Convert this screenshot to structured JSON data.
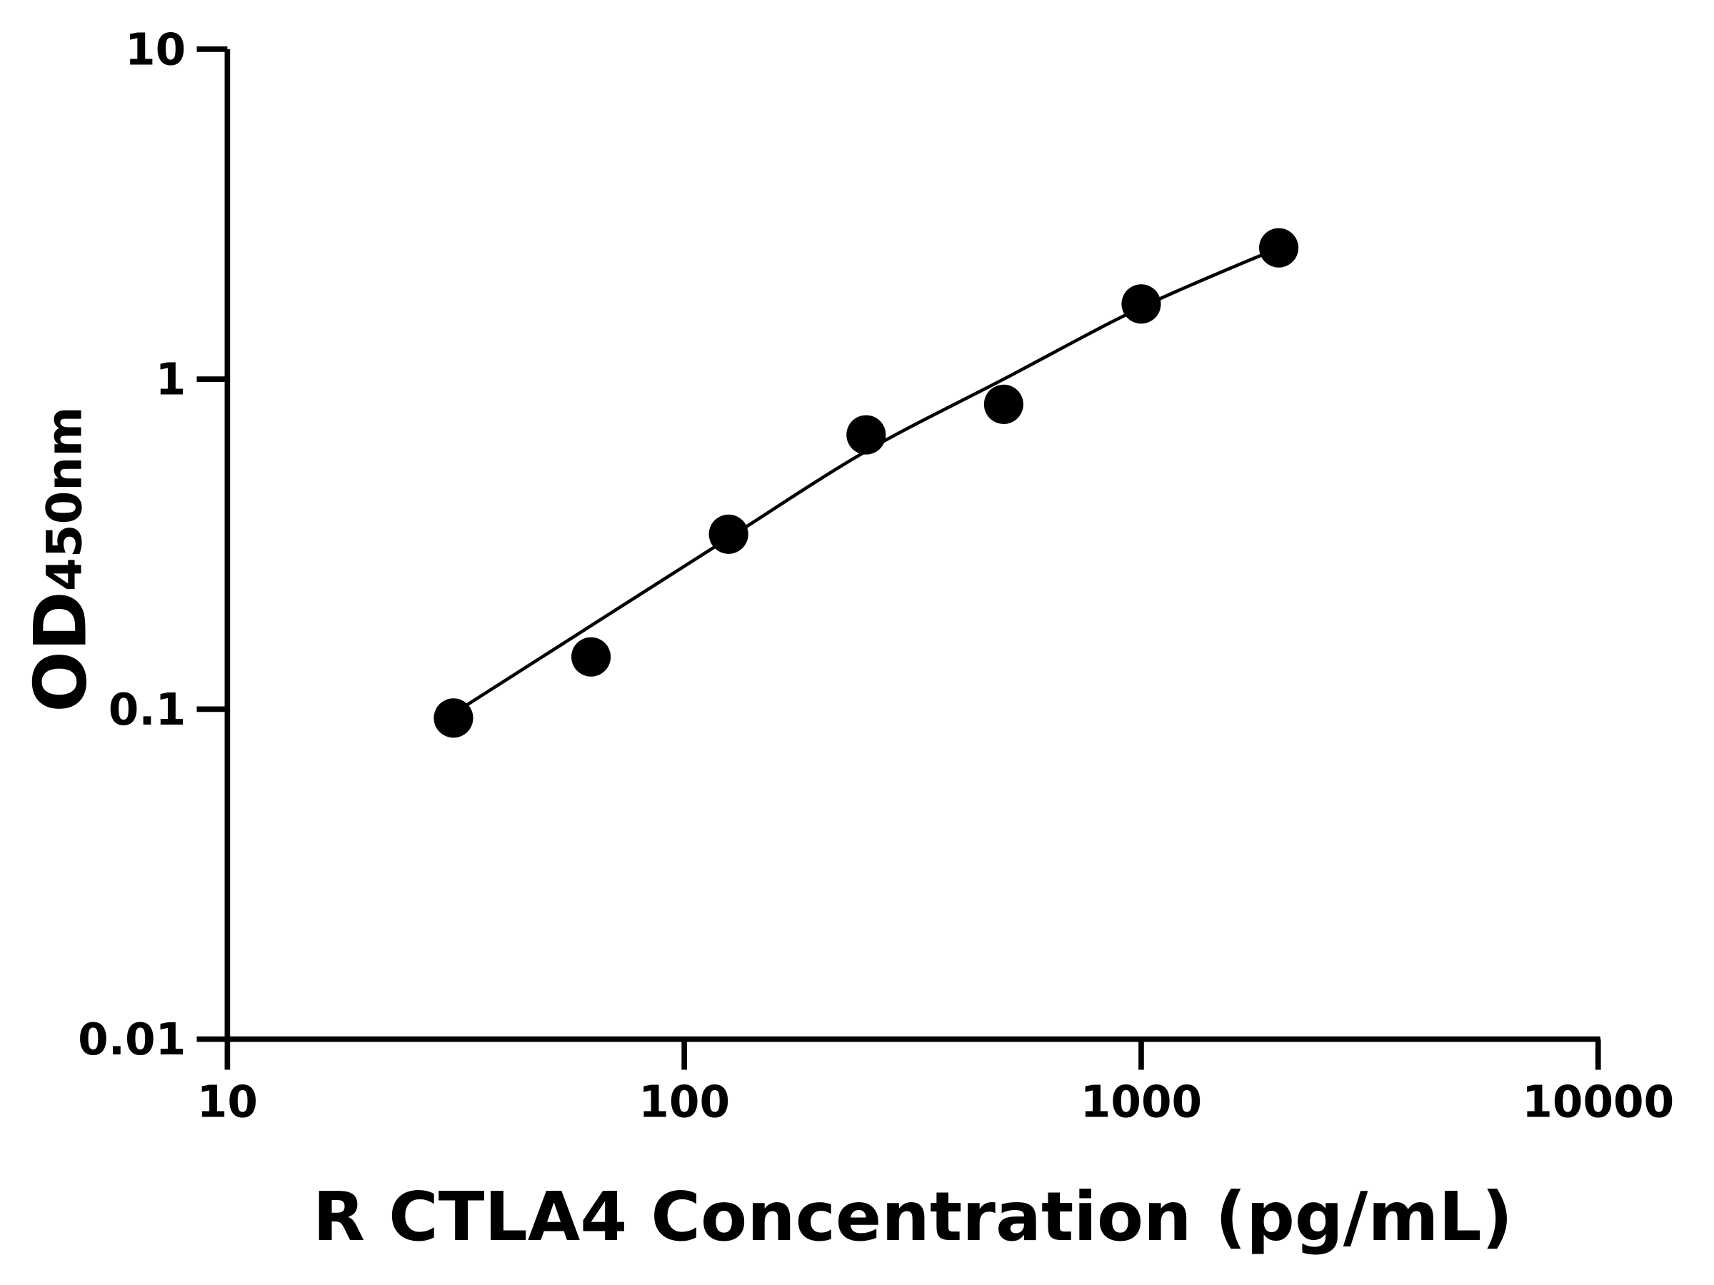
{
  "chart_data": {
    "type": "scatter",
    "title": "",
    "xlabel": "R CTLA4 Concentration (pg/mL)",
    "ylabel": "OD",
    "ylabel_subscript": "450nm",
    "x_scale": "log",
    "y_scale": "log",
    "xlim": [
      10,
      10000
    ],
    "ylim": [
      0.01,
      10
    ],
    "x_ticks": [
      "10",
      "100",
      "1000",
      "10000"
    ],
    "y_ticks": [
      "0.01",
      "0.1",
      "1",
      "10"
    ],
    "grid": false,
    "legend": "none",
    "series": [
      {
        "x": [
          31.25,
          62.5,
          125,
          250,
          500,
          1000,
          2000
        ],
        "y": [
          0.094,
          0.144,
          0.339,
          0.678,
          0.839,
          1.69,
          2.5
        ]
      }
    ],
    "fit_curve": {
      "x": [
        31.25,
        62.5,
        125,
        250,
        500,
        1000,
        2000
      ],
      "y": [
        0.097,
        0.179,
        0.33,
        0.605,
        1.0,
        1.65,
        2.5
      ]
    },
    "colors": {
      "points": "#000000",
      "line": "#000000",
      "axes": "#000000"
    }
  }
}
